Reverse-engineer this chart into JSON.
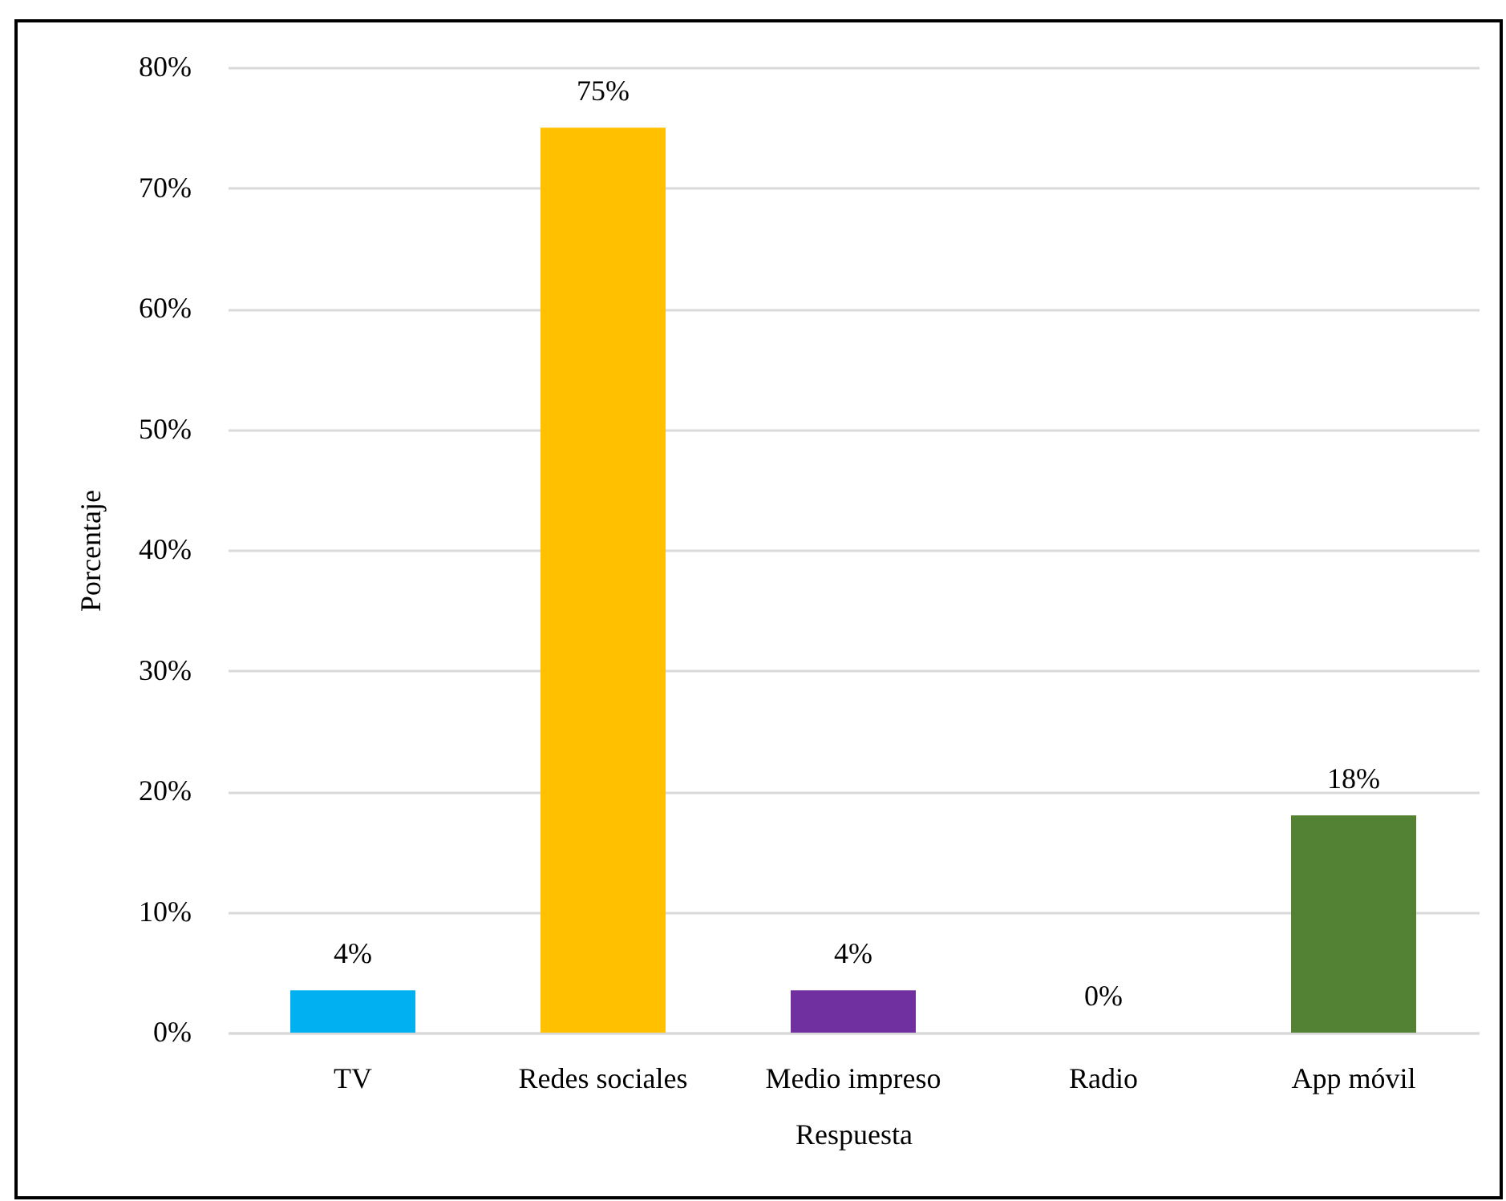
{
  "chart_data": {
    "type": "bar",
    "xlabel": "Respuesta",
    "ylabel": "Porcentaje",
    "categories": [
      "TV",
      "Redes sociales",
      "Medio impreso",
      "Radio",
      "App móvil"
    ],
    "values": [
      3.5,
      75,
      3.5,
      0,
      18
    ],
    "value_labels": [
      "4%",
      "75%",
      "4%",
      "0%",
      "18%"
    ],
    "colors": [
      "#00b0f0",
      "#ffc000",
      "#7030a0",
      null,
      "#548235"
    ],
    "ylim": [
      0,
      80
    ],
    "yticks": [
      {
        "value": 0,
        "label": "0%"
      },
      {
        "value": 10,
        "label": "10%"
      },
      {
        "value": 20,
        "label": "20%"
      },
      {
        "value": 30,
        "label": "30%"
      },
      {
        "value": 40,
        "label": "40%"
      },
      {
        "value": 50,
        "label": "50%"
      },
      {
        "value": 60,
        "label": "60%"
      },
      {
        "value": 70,
        "label": "70%"
      },
      {
        "value": 80,
        "label": "80%"
      }
    ],
    "grid": "y"
  }
}
